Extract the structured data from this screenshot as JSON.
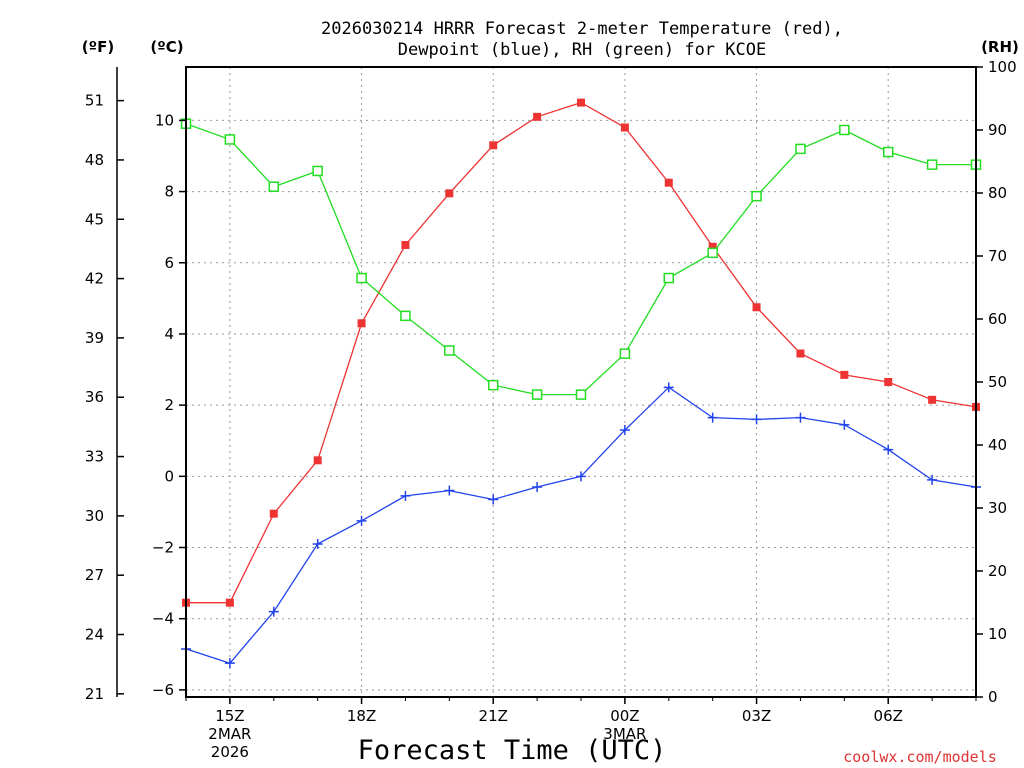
{
  "chart_data": {
    "type": "line",
    "title_line1": "2026030214 HRRR Forecast 2-meter Temperature (red),",
    "title_line2": "Dewpoint (blue), RH (green) for KCOE",
    "xlabel": "Forecast Time (UTC)",
    "credit": "coolwx.com/models",
    "unit_labels": {
      "f": "(ºF)",
      "c": "(ºC)",
      "rh": "(RH)"
    },
    "x_hours": [
      14,
      15,
      16,
      17,
      18,
      19,
      20,
      21,
      22,
      23,
      24,
      25,
      26,
      27,
      28,
      29,
      30,
      31,
      32
    ],
    "xlim": [
      14,
      32
    ],
    "x_ticks": [
      {
        "x": 15,
        "label": "15Z",
        "sub1": "2MAR",
        "sub2": "2026"
      },
      {
        "x": 18,
        "label": "18Z",
        "sub1": "",
        "sub2": ""
      },
      {
        "x": 21,
        "label": "21Z",
        "sub1": "",
        "sub2": ""
      },
      {
        "x": 24,
        "label": "00Z",
        "sub1": "3MAR",
        "sub2": ""
      },
      {
        "x": 27,
        "label": "03Z",
        "sub1": "",
        "sub2": ""
      },
      {
        "x": 30,
        "label": "06Z",
        "sub1": "",
        "sub2": ""
      }
    ],
    "ylim_c": [
      -6.2,
      11.5
    ],
    "y_ticks_c": [
      -6,
      -4,
      -2,
      0,
      2,
      4,
      6,
      8,
      10
    ],
    "y_ticks_f": [
      21,
      24,
      27,
      30,
      33,
      36,
      39,
      42,
      45,
      48,
      51
    ],
    "ylim_rh": [
      0,
      100
    ],
    "y_ticks_rh": [
      0,
      10,
      20,
      30,
      40,
      50,
      60,
      70,
      80,
      90,
      100
    ],
    "series": [
      {
        "name": "Temperature",
        "color": "#ee3333",
        "axis": "c",
        "marker": "filled-square",
        "values": [
          -3.55,
          -3.55,
          -1.05,
          0.45,
          4.3,
          6.5,
          7.95,
          9.3,
          10.1,
          10.5,
          9.8,
          8.25,
          6.45,
          4.75,
          3.45,
          2.85,
          2.65,
          2.15,
          1.95
        ]
      },
      {
        "name": "Dewpoint",
        "color": "#2244ee",
        "axis": "c",
        "marker": "plus",
        "values": [
          -4.85,
          -5.25,
          -3.8,
          -1.9,
          -1.25,
          -0.55,
          -0.4,
          -0.65,
          -0.3,
          0.0,
          1.3,
          2.5,
          1.65,
          1.6,
          1.65,
          1.45,
          0.75,
          -0.1,
          -0.3
        ]
      },
      {
        "name": "RH",
        "color": "#22dd22",
        "axis": "rh",
        "marker": "open-square",
        "values": [
          91,
          88.5,
          81,
          83.5,
          66.5,
          60.5,
          55,
          49.5,
          48,
          48,
          54.5,
          66.5,
          70.5,
          79.5,
          87,
          90,
          86.5,
          84.5,
          84.5
        ]
      }
    ]
  }
}
